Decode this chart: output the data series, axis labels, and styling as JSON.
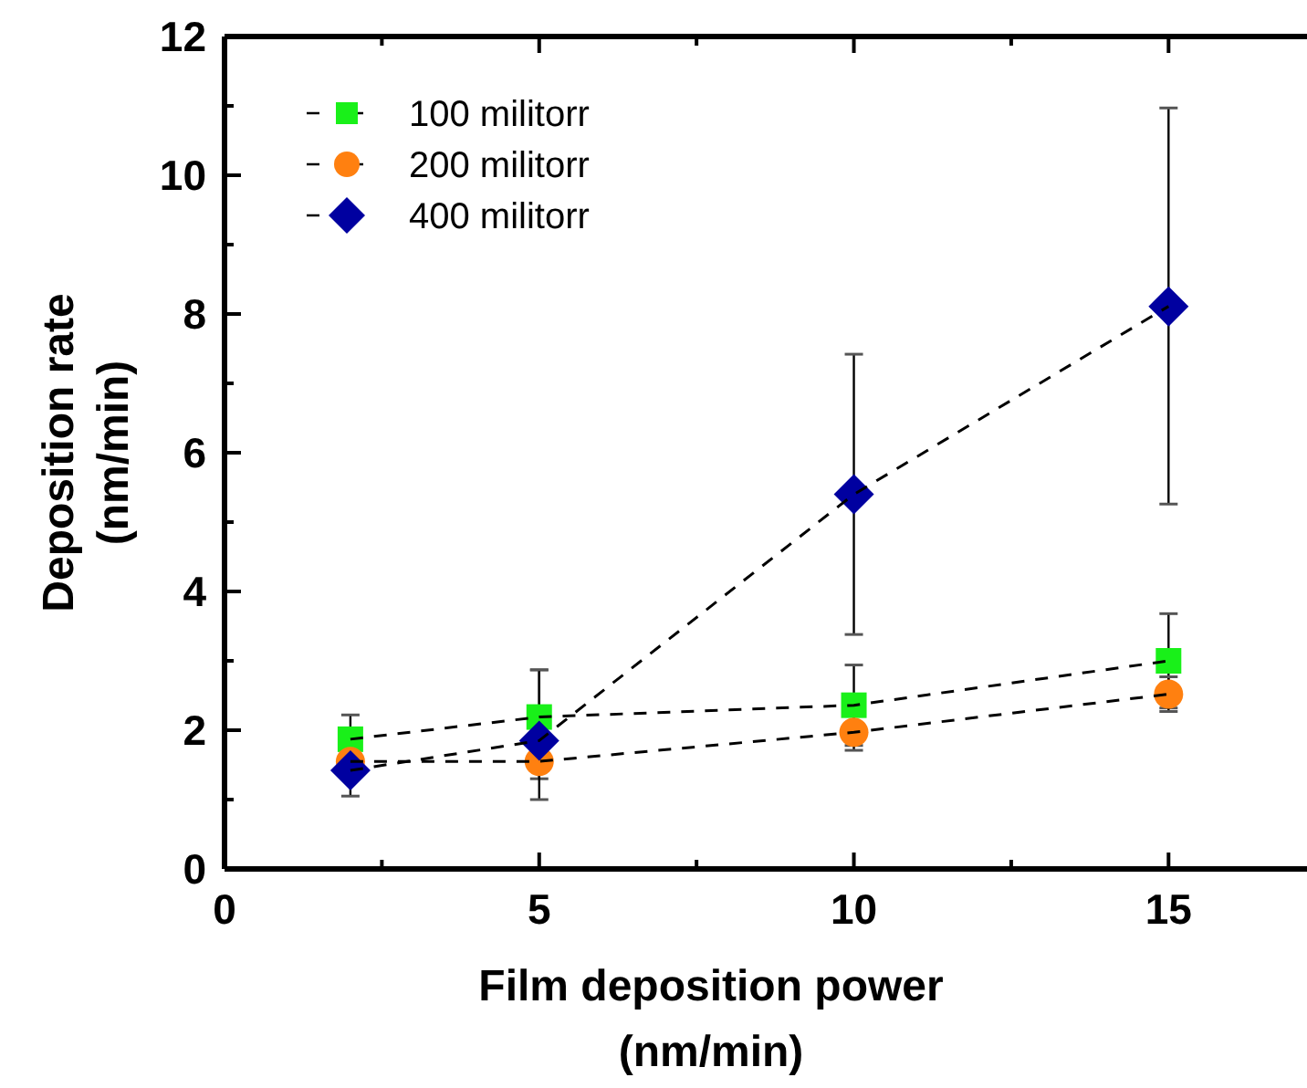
{
  "chart_data": {
    "type": "line",
    "xlabel": "Film deposition power\n(nm/min)",
    "ylabel": "Deposition rate\n(nm/min)",
    "x": [
      2,
      5,
      10,
      15
    ],
    "xlim": [
      0,
      17.2
    ],
    "xticks": [
      0,
      {
        "value": 2.5,
        "label": null
      },
      5,
      {
        "value": 7.5,
        "label": null
      },
      10,
      {
        "value": 12.5,
        "label": null
      },
      15
    ],
    "ylim": [
      0,
      12
    ],
    "yticks": [
      0,
      {
        "value": 1,
        "label": null
      },
      2,
      {
        "value": 3,
        "label": null
      },
      4,
      {
        "value": 5,
        "label": null
      },
      6,
      {
        "value": 7,
        "label": null
      },
      8,
      {
        "value": 9,
        "label": null
      },
      10,
      {
        "value": 11,
        "label": null
      },
      12
    ],
    "line_style": "dashed",
    "legend": "top left",
    "grid": false,
    "series": [
      {
        "name": "100 militorr",
        "color": "#19f019",
        "marker": "square",
        "values": [
          1.87,
          2.19,
          2.36,
          3.0
        ],
        "errors": [
          0.35,
          0.68,
          0.58,
          0.68
        ]
      },
      {
        "name": "200 militorr",
        "color": "#ff8010",
        "marker": "circle",
        "values": [
          1.55,
          1.55,
          1.97,
          2.52
        ],
        "errors": [
          null,
          0.25,
          0.26,
          0.25
        ]
      },
      {
        "name": "400 militorr",
        "color": "#0000a0",
        "marker": "diamond",
        "values": [
          1.42,
          1.85,
          5.4,
          8.11
        ],
        "errors": [
          [
            1.05,
            1.7
          ],
          [
            1.0,
            2.87
          ],
          [
            3.38,
            7.42
          ],
          [
            5.26,
            10.97
          ]
        ]
      }
    ]
  }
}
